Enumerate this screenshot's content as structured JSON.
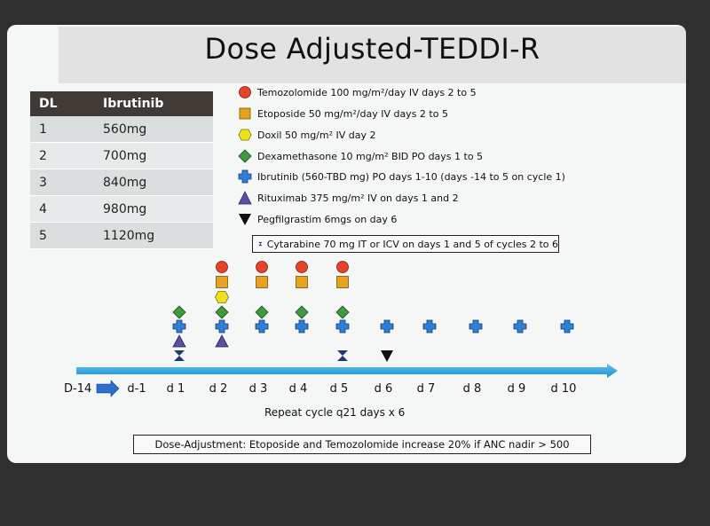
{
  "title": "Dose Adjusted-TEDDI-R",
  "dose_table": {
    "headers": [
      "DL",
      "Ibrutinib"
    ],
    "rows": [
      [
        "1",
        "560mg"
      ],
      [
        "2",
        "700mg"
      ],
      [
        "3",
        "840mg"
      ],
      [
        "4",
        "980mg"
      ],
      [
        "5",
        "1120mg"
      ]
    ]
  },
  "legend": [
    {
      "drug": "Temozolomide",
      "shape": "circle",
      "color": "#e8432a",
      "text": "Temozolomide 100 mg/m²/day IV days 2 to 5"
    },
    {
      "drug": "Etoposide",
      "shape": "square",
      "color": "#e8a222",
      "text": "Etoposide 50 mg/m²/day IV days 2 to 5"
    },
    {
      "drug": "Doxil",
      "shape": "hexagon",
      "color": "#efe21c",
      "text": "Doxil 50 mg/m² IV day 2"
    },
    {
      "drug": "Dexamethasone",
      "shape": "diamond",
      "color": "#3f9a3c",
      "text": "Dexamethasone 10 mg/m² BID PO days 1 to 5"
    },
    {
      "drug": "Ibrutinib",
      "shape": "cross",
      "color": "#2f7fd6",
      "text": "Ibrutinib (560-TBD mg) PO days 1-10 (days -14 to 5 on cycle 1)"
    },
    {
      "drug": "Rituximab",
      "shape": "triangle-up",
      "color": "#5a4fa6",
      "text": "Rituximab 375 mg/m² IV on days 1 and 2"
    },
    {
      "drug": "Pegfilgrastim",
      "shape": "triangle-down",
      "color": "#111111",
      "text": "Pegfilgrastim 6mgs on day 6"
    }
  ],
  "cytarabine": {
    "shape": "hourglass",
    "color": "#1d3a6b",
    "text": "Cytarabine 70 mg  IT or ICV on days 1 and 5 of cycles 2 to 6"
  },
  "timeline": {
    "start_label": "D-14",
    "days": [
      "d-1",
      "d 1",
      "d 2",
      "d 3",
      "d 4",
      "d 5",
      "d 6",
      "d 7",
      "d 8",
      "d 9",
      "d 10"
    ],
    "schedule": {
      "d 1": [
        "dexamethasone",
        "ibrutinib",
        "rituximab",
        "cytarabine"
      ],
      "d 2": [
        "temozolomide",
        "etoposide",
        "doxil",
        "dexamethasone",
        "ibrutinib",
        "rituximab"
      ],
      "d 3": [
        "temozolomide",
        "etoposide",
        "dexamethasone",
        "ibrutinib"
      ],
      "d 4": [
        "temozolomide",
        "etoposide",
        "dexamethasone",
        "ibrutinib"
      ],
      "d 5": [
        "temozolomide",
        "etoposide",
        "dexamethasone",
        "ibrutinib",
        "cytarabine"
      ],
      "d 6": [
        "ibrutinib",
        "pegfilgrastim"
      ],
      "d 7": [
        "ibrutinib"
      ],
      "d 8": [
        "ibrutinib"
      ],
      "d 9": [
        "ibrutinib"
      ],
      "d 10": [
        "ibrutinib"
      ]
    },
    "arrow_color": "#2aa3dd",
    "small_arrow_color": "#2a6fc9"
  },
  "repeat_note": "Repeat cycle q21 days x 6",
  "dose_adjustment": "Dose-Adjustment: Etoposide and Temozolomide  increase 20% if ANC nadir > 500"
}
